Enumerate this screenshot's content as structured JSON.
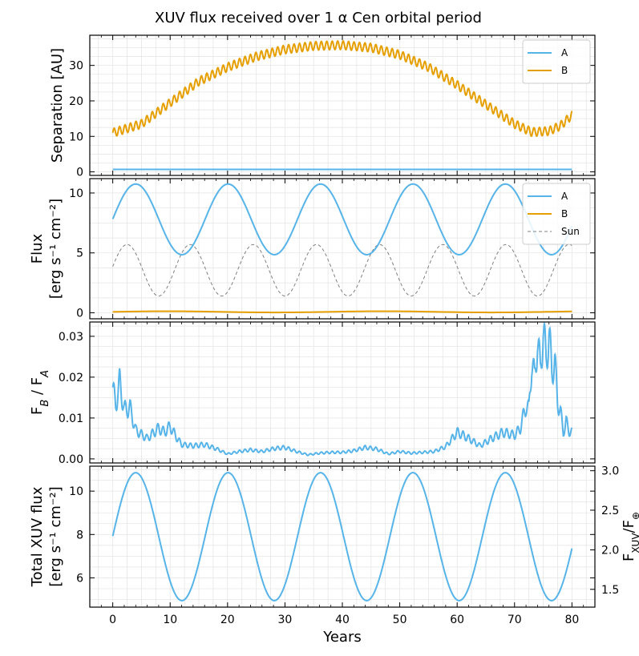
{
  "title": "XUV flux received over 1 α Cen orbital period",
  "colors": {
    "A": "#56b4e9",
    "B": "#e69f00",
    "Sun": "#808080",
    "grid": "#e6e6e6"
  },
  "chart_data": [
    {
      "type": "line",
      "panel": "separation",
      "ylabel": "Separation [AU]",
      "ylim": [
        -1,
        38.5
      ],
      "yticks": [
        0,
        10,
        20,
        30
      ],
      "legend": {
        "position": "top-right",
        "entries": [
          "A",
          "B"
        ]
      },
      "series": [
        {
          "name": "A",
          "description": "constant",
          "value": 0.7
        },
        {
          "name": "B",
          "mean_anchors_x": [
            0,
            5,
            10,
            15,
            20,
            25,
            30,
            35,
            40,
            45,
            50,
            55,
            60,
            65,
            70,
            73,
            76,
            78,
            80
          ],
          "mean_anchors_y": [
            11,
            13.5,
            19.5,
            25.5,
            29.5,
            32.5,
            34.5,
            35.5,
            35.7,
            35,
            33,
            29.5,
            24.5,
            19,
            13.5,
            11.2,
            11.5,
            13,
            16
          ],
          "ripple_amplitude": 1.2,
          "ripple_period_years": 0.95
        }
      ]
    },
    {
      "type": "line",
      "panel": "flux",
      "ylabel_line1": "Flux",
      "ylabel_line2": "[erg s⁻¹ cm⁻²]",
      "ylim": [
        -0.5,
        11.2
      ],
      "yticks": [
        0,
        5,
        10
      ],
      "legend": {
        "position": "top-right",
        "entries": [
          "A",
          "B",
          "Sun"
        ]
      },
      "series": [
        {
          "name": "A",
          "mean": 7.8,
          "amplitude": 2.95,
          "period_years": 16.1,
          "peak_year": 4.0
        },
        {
          "name": "B",
          "description": "near zero",
          "value": 0.08
        },
        {
          "name": "Sun",
          "mean": 3.55,
          "amplitude": 2.15,
          "period_years": 11.0,
          "peak_year": 2.5,
          "style": "dashed"
        }
      ]
    },
    {
      "type": "line",
      "panel": "ratio",
      "ylabel": "F_B / F_A",
      "ylim": [
        -0.001,
        0.0335
      ],
      "yticks": [
        0.0,
        0.01,
        0.02,
        0.03
      ],
      "ytick_labels": [
        "0.00",
        "0.01",
        "0.02",
        "0.03"
      ],
      "series": [
        {
          "name": "F_B/F_A",
          "x": [
            0,
            0.5,
            1.2,
            2,
            3,
            4,
            6,
            8,
            9,
            10,
            11,
            12,
            14,
            16,
            18,
            20,
            22,
            24,
            26,
            28,
            30,
            32,
            34,
            36,
            38,
            40,
            42,
            44,
            46,
            48,
            50,
            52,
            54,
            56,
            58,
            60,
            61,
            62,
            64,
            66,
            68,
            70,
            71,
            72,
            72.5,
            73,
            73.5,
            74,
            74.5,
            75,
            75.5,
            76,
            76.5,
            77,
            77.5,
            78,
            78.5,
            79,
            79.5,
            80
          ],
          "y": [
            0.0175,
            0.013,
            0.0188,
            0.012,
            0.0125,
            0.007,
            0.005,
            0.0075,
            0.0065,
            0.008,
            0.0055,
            0.0035,
            0.0032,
            0.0035,
            0.0025,
            0.0012,
            0.0018,
            0.0022,
            0.0018,
            0.0025,
            0.0028,
            0.0018,
            0.001,
            0.0014,
            0.0016,
            0.0016,
            0.002,
            0.0028,
            0.0024,
            0.0012,
            0.0018,
            0.0014,
            0.0016,
            0.0018,
            0.003,
            0.0065,
            0.0058,
            0.005,
            0.0032,
            0.005,
            0.0065,
            0.0058,
            0.0075,
            0.013,
            0.012,
            0.024,
            0.0195,
            0.0295,
            0.0215,
            0.0318,
            0.024,
            0.0305,
            0.0215,
            0.024,
            0.014,
            0.0115,
            0.0065,
            0.009,
            0.0068,
            0.0065
          ]
        }
      ]
    },
    {
      "type": "line",
      "panel": "total",
      "ylabel_line1": "Total XUV flux",
      "ylabel_line2": "[erg s⁻¹ cm⁻²]",
      "ylim": [
        4.65,
        11.15
      ],
      "yticks": [
        6,
        8,
        10
      ],
      "y2label": "F_XUV/F⊕",
      "y2ticks": [
        1.5,
        2.0,
        2.5,
        3.0
      ],
      "y2ticks_in_y1_units": [
        5.47,
        7.29,
        9.12,
        10.94
      ],
      "series": [
        {
          "name": "Total",
          "mean": 7.9,
          "amplitude": 2.95,
          "period_years": 16.1,
          "peak_year": 4.0
        }
      ]
    }
  ],
  "xaxis": {
    "label": "Years",
    "xlim": [
      -4,
      84
    ],
    "ticks": [
      0,
      10,
      20,
      30,
      40,
      50,
      60,
      70,
      80
    ]
  }
}
